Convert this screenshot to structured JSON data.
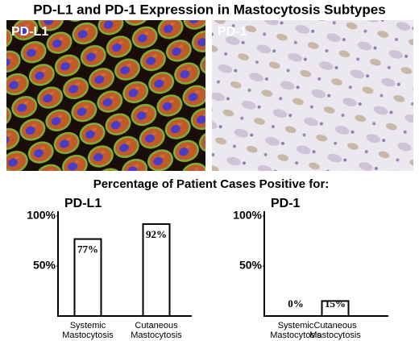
{
  "title": "PD-L1 and PD-1 Expression in Mastocytosis Subtypes",
  "panels": [
    {
      "label": "PD-L1"
    },
    {
      "label": "PD-1"
    }
  ],
  "subtitle": "Percentage of Patient Cases Positive for:",
  "chart_data": [
    {
      "type": "bar",
      "title": "PD-L1",
      "categories": [
        "Systemic Mastocytosis",
        "Cutaneous Mastocytosis"
      ],
      "values": [
        77,
        92
      ],
      "value_labels": [
        "77%",
        "92%"
      ],
      "color": "#ffffff",
      "ylim": [
        0,
        100
      ],
      "yticks": [
        {
          "value": 50,
          "label": "50%"
        },
        {
          "value": 100,
          "label": "100%"
        }
      ]
    },
    {
      "type": "bar",
      "title": "PD-1",
      "categories": [
        "Systemic Mastocytosis",
        "Cutaneous Mastocytosis"
      ],
      "values": [
        0,
        15
      ],
      "value_labels": [
        "0%",
        "15%"
      ],
      "color": "#ffffff",
      "ylim": [
        0,
        100
      ],
      "yticks": [
        {
          "value": 50,
          "label": "50%"
        },
        {
          "value": 100,
          "label": "100%"
        }
      ]
    }
  ]
}
